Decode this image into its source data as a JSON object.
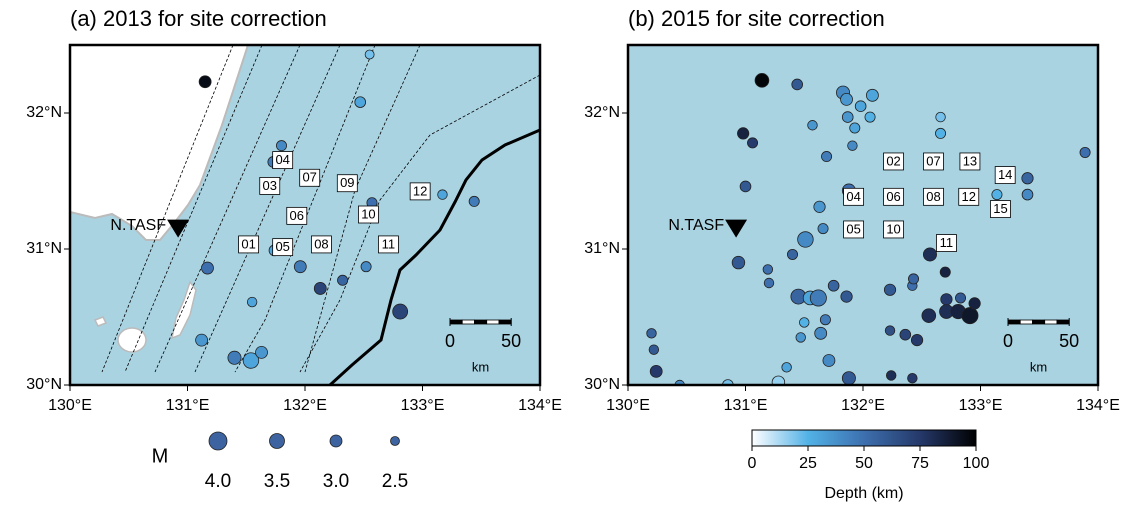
{
  "chart_data": [
    {
      "type": "scatter",
      "title": "(a) 2013 for site correction",
      "xlim": [
        130,
        134
      ],
      "ylim": [
        30,
        32.5
      ],
      "xticks": [
        {
          "value": 130,
          "label": "130°E"
        },
        {
          "value": 131,
          "label": "131°E"
        },
        {
          "value": 132,
          "label": "132°E"
        },
        {
          "value": 133,
          "label": "133°E"
        },
        {
          "value": 134,
          "label": "134°E"
        }
      ],
      "yticks": [
        {
          "value": 30,
          "label": "30°N"
        },
        {
          "value": 31,
          "label": "31°N"
        },
        {
          "value": 32,
          "label": "32°N"
        }
      ],
      "x": [
        131.15,
        132.55,
        132.47,
        131.8,
        131.73,
        132.57,
        133.17,
        133.44,
        131.74,
        131.96,
        131.17,
        132.13,
        132.32,
        132.52,
        132.81,
        131.55,
        131.12,
        131.4,
        131.54,
        131.63
      ],
      "y": [
        32.23,
        32.43,
        32.08,
        31.76,
        31.64,
        31.34,
        31.4,
        31.35,
        30.99,
        30.87,
        30.86,
        30.71,
        30.77,
        30.87,
        30.54,
        30.61,
        30.33,
        30.2,
        30.18,
        30.24
      ],
      "magnitude": [
        3.0,
        2.5,
        2.8,
        2.7,
        2.8,
        2.7,
        2.6,
        2.7,
        2.8,
        3.0,
        3.0,
        3.0,
        2.7,
        2.7,
        3.5,
        2.6,
        3.0,
        3.2,
        3.6,
        3.0
      ],
      "depth": [
        95,
        20,
        30,
        40,
        45,
        50,
        30,
        45,
        30,
        45,
        50,
        70,
        55,
        40,
        70,
        30,
        35,
        45,
        30,
        35
      ],
      "stations": {
        "labels": [
          "04",
          "03",
          "07",
          "09",
          "12",
          "06",
          "10",
          "01",
          "05",
          "08",
          "11"
        ],
        "x": [
          131.81,
          131.7,
          132.04,
          132.36,
          132.98,
          131.93,
          132.54,
          131.52,
          131.81,
          132.14,
          132.71
        ],
        "y": [
          31.65,
          31.46,
          31.52,
          31.48,
          31.42,
          31.24,
          31.25,
          31.03,
          31.01,
          31.03,
          31.03
        ]
      },
      "station_marker": {
        "label": "N.TASF",
        "x": 130.92,
        "y": 31.15
      },
      "scale_bar": {
        "ticks": [
          0,
          50
        ],
        "unit": "km"
      }
    },
    {
      "type": "scatter",
      "title": "(b) 2015 for site correction",
      "xlim": [
        130,
        134
      ],
      "ylim": [
        30,
        32.5
      ],
      "xticks": [
        {
          "value": 130,
          "label": "130°E"
        },
        {
          "value": 131,
          "label": "131°E"
        },
        {
          "value": 132,
          "label": "132°E"
        },
        {
          "value": 133,
          "label": "133°E"
        },
        {
          "value": 134,
          "label": "134°E"
        }
      ],
      "yticks": [
        {
          "value": 30,
          "label": "30°N"
        },
        {
          "value": 31,
          "label": "31°N"
        },
        {
          "value": 32,
          "label": "32°N"
        }
      ],
      "x": [
        131.14,
        130.98,
        131.06,
        131.0,
        131.44,
        131.83,
        131.86,
        132.08,
        131.98,
        131.87,
        132.06,
        131.93,
        131.57,
        132.66,
        132.66,
        131.69,
        131.91,
        131.88,
        131.63,
        131.66,
        131.51,
        131.4,
        130.94,
        131.19,
        131.2,
        131.45,
        131.55,
        131.62,
        131.86,
        131.75,
        131.5,
        131.68,
        131.64,
        131.47,
        131.71,
        131.35,
        131.88,
        131.28,
        130.85,
        130.24,
        130.2,
        130.22,
        130.44,
        132.23,
        132.23,
        132.42,
        132.57,
        132.7,
        132.43,
        132.56,
        132.36,
        132.46,
        132.71,
        132.71,
        132.81,
        132.91,
        132.83,
        132.95,
        132.24,
        132.42,
        133.89,
        133.4,
        133.4,
        133.14
      ],
      "y": [
        32.24,
        31.85,
        31.78,
        31.46,
        32.21,
        32.15,
        32.1,
        32.13,
        32.05,
        31.97,
        31.97,
        31.89,
        31.91,
        31.97,
        31.85,
        31.68,
        31.76,
        31.43,
        31.31,
        31.15,
        31.07,
        30.96,
        30.9,
        30.85,
        30.75,
        30.65,
        30.64,
        30.64,
        30.65,
        30.73,
        30.46,
        30.48,
        30.38,
        30.35,
        30.18,
        30.13,
        30.05,
        30.02,
        30.0,
        30.1,
        30.38,
        30.26,
        30.0,
        30.7,
        30.4,
        30.73,
        30.96,
        30.83,
        30.78,
        30.51,
        30.37,
        30.33,
        30.63,
        30.54,
        30.54,
        30.51,
        30.64,
        30.6,
        30.07,
        30.05,
        31.71,
        31.52,
        31.4,
        31.4
      ],
      "magnitude": [
        3.3,
        2.9,
        2.7,
        2.8,
        2.8,
        3.2,
        3.0,
        3.0,
        2.8,
        2.8,
        2.7,
        2.7,
        2.6,
        2.6,
        2.7,
        2.7,
        2.6,
        3.2,
        2.9,
        2.7,
        3.6,
        2.7,
        3.1,
        2.6,
        2.6,
        3.5,
        3.3,
        3.7,
        2.9,
        2.8,
        2.6,
        2.7,
        3.0,
        2.6,
        3.0,
        2.6,
        3.2,
        3.1,
        2.8,
        3.0,
        2.6,
        2.6,
        2.6,
        2.9,
        2.6,
        2.6,
        3.2,
        2.7,
        2.7,
        3.3,
        2.8,
        2.9,
        2.9,
        3.3,
        3.4,
        3.7,
        2.7,
        2.9,
        2.6,
        2.6,
        2.7,
        2.9,
        2.8,
        2.7
      ],
      "depth": [
        98,
        85,
        75,
        60,
        60,
        40,
        35,
        30,
        30,
        35,
        25,
        30,
        35,
        20,
        25,
        45,
        40,
        50,
        35,
        40,
        40,
        55,
        60,
        50,
        50,
        55,
        30,
        45,
        60,
        55,
        25,
        45,
        40,
        35,
        40,
        30,
        60,
        15,
        20,
        75,
        55,
        60,
        40,
        60,
        65,
        50,
        80,
        85,
        55,
        80,
        70,
        75,
        75,
        80,
        85,
        90,
        60,
        85,
        80,
        75,
        50,
        55,
        40,
        25
      ],
      "stations": {
        "labels": [
          "02",
          "07",
          "13",
          "14",
          "04",
          "06",
          "08",
          "12",
          "15",
          "05",
          "10",
          "11"
        ],
        "x": [
          132.26,
          132.6,
          132.91,
          133.21,
          131.92,
          132.26,
          132.6,
          132.9,
          133.17,
          131.92,
          132.26,
          132.71
        ],
        "y": [
          31.64,
          31.64,
          31.64,
          31.54,
          31.38,
          31.38,
          31.38,
          31.38,
          31.29,
          31.14,
          31.14,
          31.04
        ]
      },
      "station_marker": {
        "label": "N.TASF",
        "x": 130.92,
        "y": 31.15
      },
      "scale_bar": {
        "ticks": [
          0,
          50
        ],
        "unit": "km"
      }
    }
  ],
  "size_legend": {
    "title": "M",
    "color": "#3d64a0",
    "sizes": [
      {
        "value": 4,
        "label": "4.0"
      },
      {
        "value": 3.5,
        "label": "3.5"
      },
      {
        "value": 3,
        "label": "3.0"
      },
      {
        "value": 2.5,
        "label": "2.5"
      }
    ]
  },
  "colorbar": {
    "label": "Depth (km)",
    "clim": [
      0,
      100
    ],
    "ticks": [
      0,
      25,
      50,
      75,
      100
    ],
    "colors": [
      "#ffffff",
      "#52b2e6",
      "#3d6fae",
      "#25396a",
      "#000000"
    ]
  }
}
